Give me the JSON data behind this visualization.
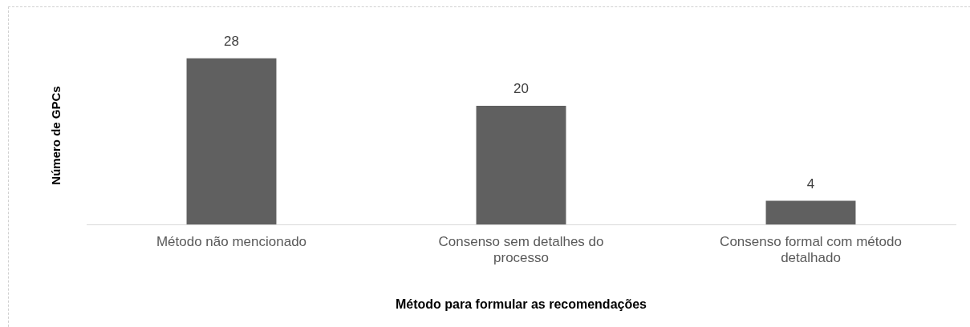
{
  "chart_data": {
    "type": "bar",
    "xlabel": "Método para formular as recomendações",
    "ylabel": "Número de GPCs",
    "categories": [
      "Método não mencionado",
      "Consenso sem detalhes do processo",
      "Consenso formal com método detalhado"
    ],
    "values": [
      28,
      20,
      4
    ],
    "color": "#606060",
    "data_labels": true,
    "grid": false,
    "legend": false
  }
}
